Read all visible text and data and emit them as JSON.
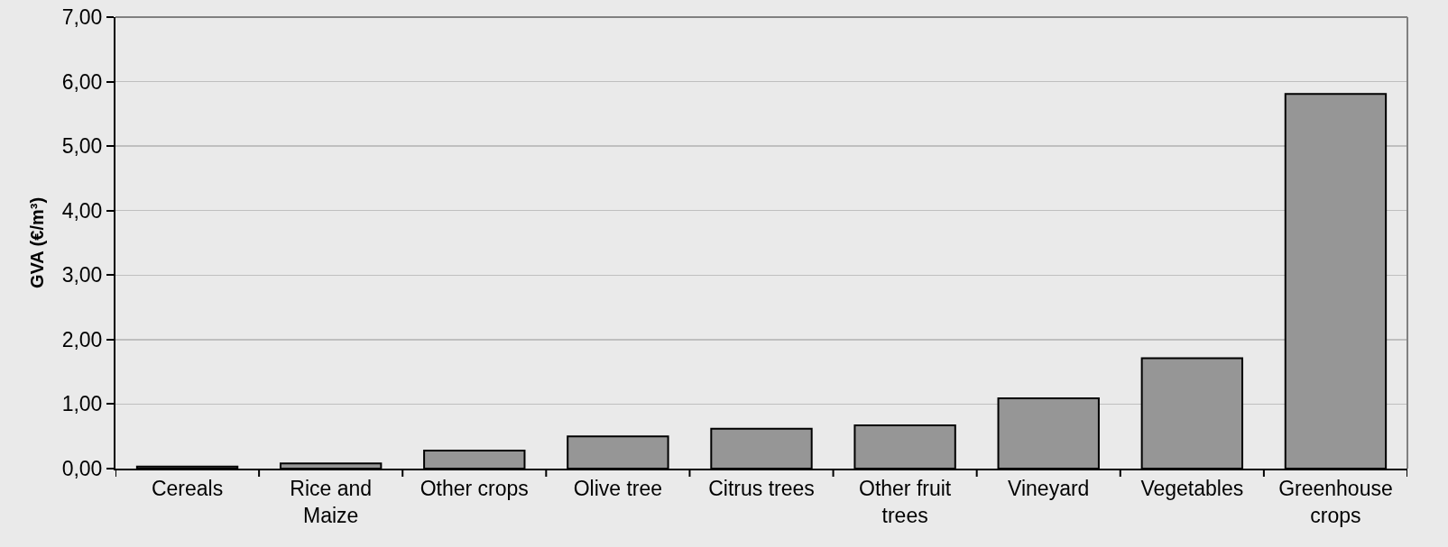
{
  "chart_data": {
    "type": "bar",
    "ylabel": "GVA (€/m³)",
    "categories": [
      "Cereals",
      "Rice and Maize",
      "Other crops",
      "Olive tree",
      "Citrus trees",
      "Other fruit trees",
      "Vineyard",
      "Vegetables",
      "Greenhouse crops"
    ],
    "values": [
      0.03,
      0.08,
      0.28,
      0.5,
      0.62,
      0.67,
      1.09,
      1.71,
      5.81
    ],
    "color": "#969696",
    "ylim": [
      0,
      7
    ],
    "yticks": [
      {
        "value": 0,
        "label": "0,00"
      },
      {
        "value": 1,
        "label": "1,00"
      },
      {
        "value": 2,
        "label": "2,00"
      },
      {
        "value": 3,
        "label": "3,00"
      },
      {
        "value": 4,
        "label": "4,00"
      },
      {
        "value": 5,
        "label": "5,00"
      },
      {
        "value": 6,
        "label": "6,00"
      },
      {
        "value": 7,
        "label": "7,00"
      }
    ],
    "grid": "y"
  }
}
